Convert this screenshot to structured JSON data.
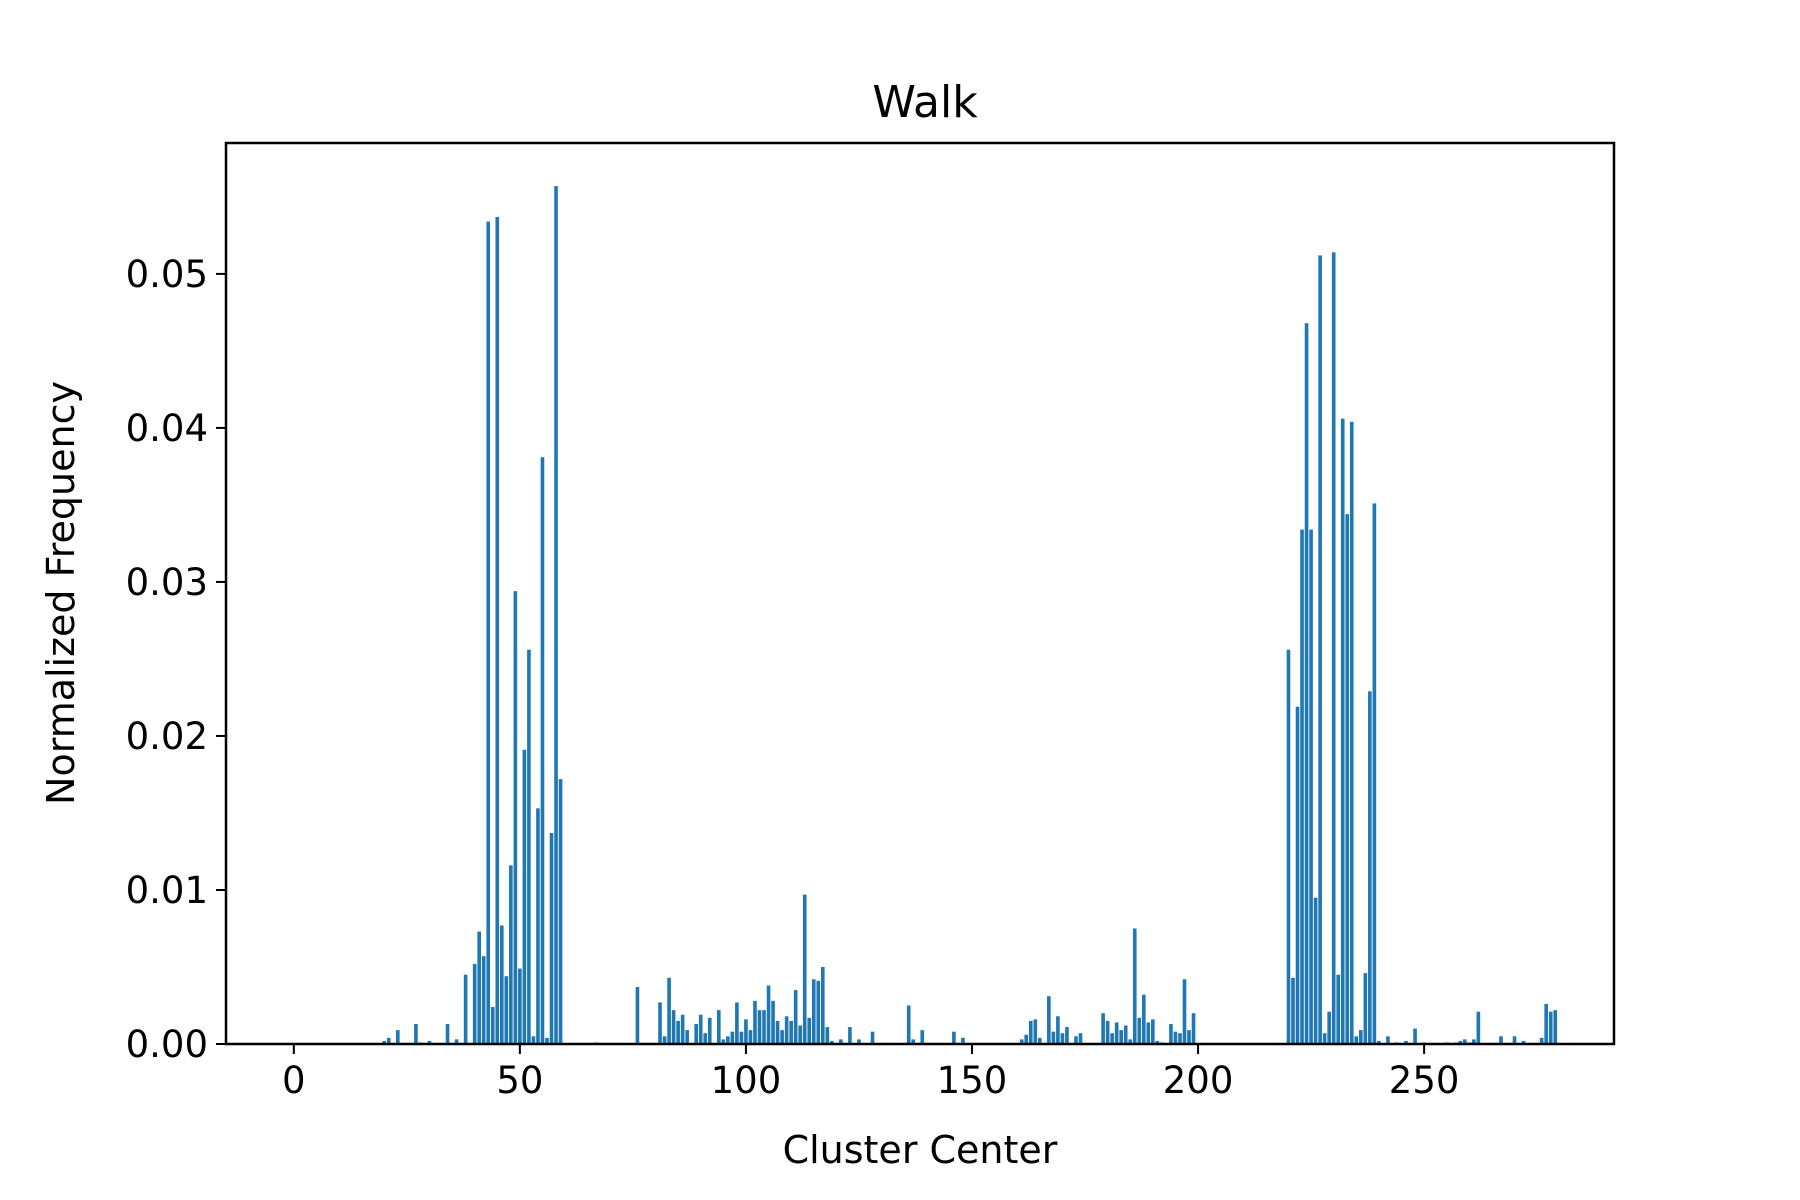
{
  "chart_data": {
    "type": "bar",
    "title": "Walk",
    "xlabel": "Cluster Center",
    "ylabel": "Normalized Frequency",
    "xlim": [
      -15,
      292
    ],
    "ylim": [
      0,
      0.0585
    ],
    "xticks": [
      0,
      50,
      100,
      150,
      200,
      250
    ],
    "xtick_labels": [
      "0",
      "50",
      "100",
      "150",
      "200",
      "250"
    ],
    "yticks": [
      0,
      0.01,
      0.02,
      0.03,
      0.04,
      0.05
    ],
    "ytick_labels": [
      "0.00",
      "0.01",
      "0.02",
      "0.03",
      "0.04",
      "0.05"
    ],
    "bar_color": "#1f77b4",
    "grid": false,
    "legend": "none",
    "x": [
      20,
      21,
      23,
      27,
      28,
      30,
      34,
      36,
      38,
      40,
      41,
      42,
      43,
      44,
      45,
      46,
      47,
      48,
      49,
      50,
      51,
      52,
      53,
      54,
      55,
      56,
      57,
      58,
      59,
      67,
      76,
      81,
      82,
      83,
      84,
      85,
      86,
      87,
      89,
      90,
      91,
      92,
      94,
      95,
      96,
      97,
      98,
      99,
      100,
      101,
      102,
      103,
      104,
      105,
      106,
      107,
      108,
      109,
      110,
      111,
      112,
      113,
      114,
      115,
      116,
      117,
      118,
      119,
      121,
      123,
      125,
      128,
      136,
      137,
      139,
      146,
      148,
      161,
      162,
      163,
      164,
      165,
      167,
      168,
      169,
      170,
      171,
      173,
      174,
      179,
      180,
      181,
      182,
      183,
      184,
      185,
      186,
      187,
      188,
      189,
      190,
      191,
      192,
      194,
      195,
      196,
      197,
      198,
      199,
      220,
      221,
      222,
      223,
      224,
      225,
      226,
      227,
      228,
      229,
      230,
      231,
      232,
      233,
      234,
      235,
      236,
      237,
      238,
      239,
      240,
      242,
      244,
      246,
      248,
      250,
      255,
      257,
      258,
      259,
      260,
      261,
      262,
      267,
      270,
      272,
      276,
      277,
      278,
      279
    ],
    "values": [
      0.0002,
      0.0004,
      0.0009,
      0.0013,
      0.0001,
      0.0002,
      0.0013,
      0.0003,
      0.0045,
      0.0052,
      0.0073,
      0.0057,
      0.0534,
      0.0024,
      0.0537,
      0.0077,
      0.0044,
      0.0116,
      0.0294,
      0.0049,
      0.0191,
      0.0256,
      0.0005,
      0.0153,
      0.0381,
      0.0004,
      0.0137,
      0.0557,
      0.0172,
      0.0001,
      0.0037,
      0.0027,
      0.0005,
      0.0043,
      0.0022,
      0.0015,
      0.0019,
      0.0009,
      0.0013,
      0.0019,
      0.0007,
      0.0017,
      0.0022,
      0.0003,
      0.0005,
      0.0008,
      0.0027,
      0.0008,
      0.0016,
      0.0009,
      0.0028,
      0.0022,
      0.0022,
      0.0038,
      0.0028,
      0.0015,
      0.0009,
      0.0018,
      0.0015,
      0.0035,
      0.0012,
      0.0097,
      0.0017,
      0.0042,
      0.0041,
      0.005,
      0.0011,
      0.0002,
      0.0003,
      0.0011,
      0.0003,
      0.0008,
      0.0025,
      0.0003,
      0.0009,
      0.0008,
      0.0004,
      0.0003,
      0.0006,
      0.0015,
      0.0016,
      0.0004,
      0.0031,
      0.0008,
      0.0018,
      0.0007,
      0.0011,
      0.0005,
      0.0007,
      0.002,
      0.0015,
      0.0007,
      0.0014,
      0.0009,
      0.0012,
      0.0003,
      0.0075,
      0.0017,
      0.0032,
      0.0014,
      0.0016,
      0.0002,
      0.0001,
      0.0013,
      0.0008,
      0.0007,
      0.0042,
      0.0009,
      0.002,
      0.0256,
      0.0043,
      0.0219,
      0.0334,
      0.0468,
      0.0334,
      0.0095,
      0.0512,
      0.0007,
      0.0021,
      0.0514,
      0.0045,
      0.0406,
      0.0344,
      0.0404,
      0.0005,
      0.0009,
      0.0046,
      0.0229,
      0.0351,
      0.0002,
      0.0005,
      0.0001,
      0.0002,
      0.001,
      0.0001,
      0.0001,
      0.0001,
      0.0002,
      0.0003,
      0.0001,
      0.0003,
      0.0021,
      0.0005,
      0.0005,
      0.0002,
      0.0004,
      0.0026,
      0.0021,
      0.0022
    ]
  }
}
